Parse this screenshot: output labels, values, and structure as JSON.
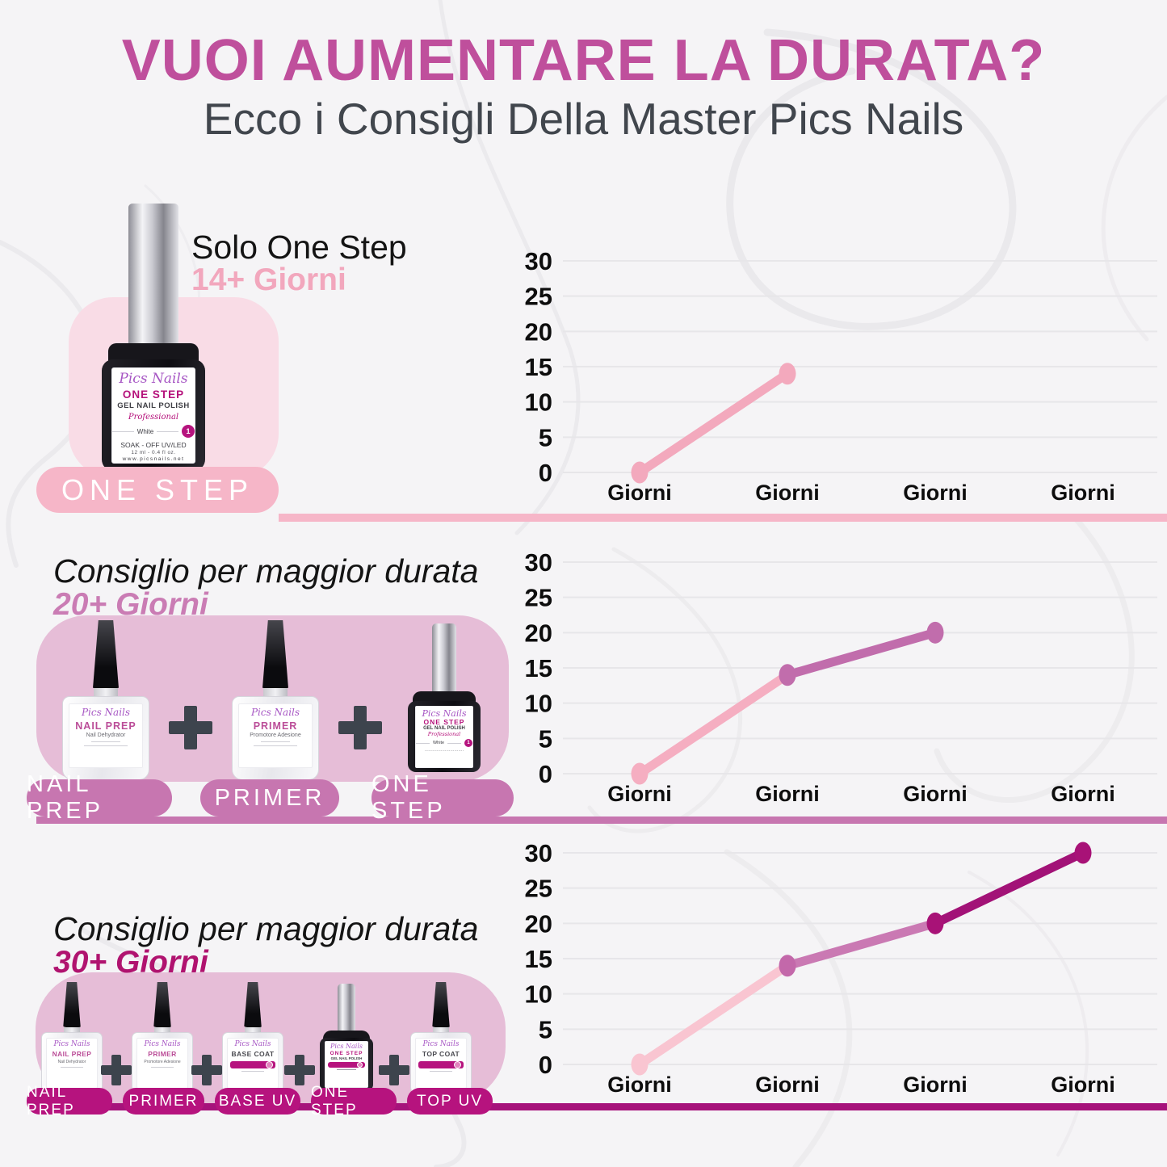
{
  "header": {
    "title": "VUOI AUMENTARE LA DURATA?",
    "subtitle": "Ecco i Consigli Della Master Pics Nails"
  },
  "sections": [
    {
      "heading": "Solo One Step",
      "duration": "14+ Giorni",
      "pills": [
        "ONE STEP"
      ]
    },
    {
      "heading": "Consiglio per maggior durata",
      "duration": "20+ Giorni",
      "pills": [
        "NAIL PREP",
        "PRIMER",
        "ONE STEP"
      ]
    },
    {
      "heading": "Consiglio per maggior durata",
      "duration": "30+ Giorni",
      "pills": [
        "NAIL PREP",
        "PRIMER",
        "BASE UV",
        "ONE STEP",
        "TOP UV"
      ]
    }
  ],
  "products": {
    "one_step_big": {
      "brand": "Pics Nails",
      "name": "ONE STEP",
      "line2": "GEL NAIL POLISH",
      "script": "Professional",
      "shade": "White",
      "badge": "1",
      "line3": "SOAK - OFF UV/LED",
      "line4": "12 ml - 0.4 fl oz.",
      "line5": "www.picsnails.net"
    },
    "nail_prep": {
      "brand": "Pics Nails",
      "name": "NAIL PREP",
      "sub": "Nail Dehydrator"
    },
    "primer": {
      "brand": "Pics Nails",
      "name": "PRIMER",
      "sub": "Promotore Adesione"
    },
    "one_step_small": {
      "brand": "Pics Nails",
      "name": "ONE STEP",
      "line2": "GEL NAIL POLISH",
      "script": "Professional",
      "shade": "White",
      "badge": "1"
    },
    "base_coat": {
      "brand": "Pics Nails",
      "name": "BASE COAT"
    },
    "top_coat": {
      "brand": "Pics Nails",
      "name": "TOP COAT"
    }
  },
  "icons": {
    "plus": "plus-icon"
  },
  "colors": {
    "title": "#bf4f9c",
    "subtitle": "#41464d",
    "pink_light": "#f6b6c8",
    "pink_light_text": "#f2a7bd",
    "pink_medium": "#c776b0",
    "pink_medium_text": "#ca7cb4",
    "magenta_pill": "#b6137e",
    "magenta_text": "#b0136f",
    "magenta_divider": "#a6127b",
    "panel_light": "#f9dce6",
    "panel_medium": "#e6bdd7",
    "plus": "#3d444d",
    "axis_text": "#0d0d0d",
    "gridline": "#e7e6e9"
  },
  "chart_data": [
    {
      "type": "line",
      "categories": [
        "Giorni",
        "Giorni",
        "Giorni",
        "Giorni"
      ],
      "values": [
        0,
        14,
        null,
        null
      ],
      "ylim": [
        0,
        30
      ],
      "yticks": [
        0,
        5,
        10,
        15,
        20,
        25,
        30
      ],
      "grid": true,
      "legend": false,
      "line_colors": [
        "#f3a9bd"
      ],
      "point_colors": [
        "#f3a9bd",
        "#f3a9bd"
      ]
    },
    {
      "type": "line",
      "categories": [
        "Giorni",
        "Giorni",
        "Giorni",
        "Giorni"
      ],
      "values": [
        0,
        14,
        20,
        null
      ],
      "ylim": [
        0,
        30
      ],
      "yticks": [
        0,
        5,
        10,
        15,
        20,
        25,
        30
      ],
      "grid": true,
      "legend": false,
      "line_colors": [
        "#f5aec1",
        "#c16dac"
      ],
      "point_colors": [
        "#f5aec1",
        "#c16dac",
        "#c16dac"
      ]
    },
    {
      "type": "line",
      "categories": [
        "Giorni",
        "Giorni",
        "Giorni",
        "Giorni"
      ],
      "values": [
        0,
        14,
        20,
        30
      ],
      "ylim": [
        0,
        30
      ],
      "yticks": [
        0,
        5,
        10,
        15,
        20,
        25,
        30
      ],
      "grid": true,
      "legend": false,
      "line_colors": [
        "#f9c5d1",
        "#ca79b3",
        "#a21277"
      ],
      "point_colors": [
        "#f9c5d1",
        "#c368aa",
        "#a81277",
        "#a81277"
      ]
    }
  ]
}
